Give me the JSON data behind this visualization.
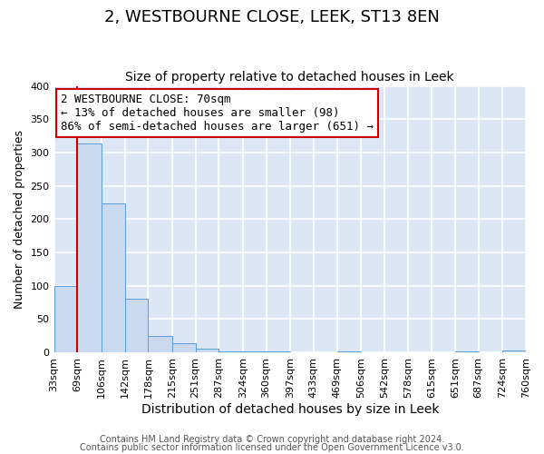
{
  "title": "2, WESTBOURNE CLOSE, LEEK, ST13 8EN",
  "subtitle": "Size of property relative to detached houses in Leek",
  "xlabel": "Distribution of detached houses by size in Leek",
  "ylabel": "Number of detached properties",
  "bin_edges": [
    33,
    69,
    106,
    142,
    178,
    215,
    251,
    287,
    324,
    360,
    397,
    433,
    469,
    506,
    542,
    578,
    615,
    651,
    687,
    724,
    760
  ],
  "bar_heights": [
    100,
    313,
    224,
    80,
    25,
    14,
    5,
    1,
    1,
    1,
    0,
    0,
    1,
    0,
    0,
    0,
    0,
    1,
    0,
    2
  ],
  "bar_color": "#c9d9f0",
  "bar_edge_color": "#5b9bd5",
  "background_color": "#dce6f5",
  "grid_color": "#ffffff",
  "annotation_line1": "2 WESTBOURNE CLOSE: 70sqm",
  "annotation_line2": "← 13% of detached houses are smaller (98)",
  "annotation_line3": "86% of semi-detached houses are larger (651) →",
  "annotation_box_edge_color": "#cc0000",
  "red_line_x": 69,
  "ylim": [
    0,
    400
  ],
  "yticks": [
    0,
    50,
    100,
    150,
    200,
    250,
    300,
    350,
    400
  ],
  "footer_line1": "Contains HM Land Registry data © Crown copyright and database right 2024.",
  "footer_line2": "Contains public sector information licensed under the Open Government Licence v3.0.",
  "title_fontsize": 13,
  "subtitle_fontsize": 10,
  "xlabel_fontsize": 10,
  "ylabel_fontsize": 9,
  "tick_fontsize": 8,
  "annotation_fontsize": 9,
  "footer_fontsize": 7
}
